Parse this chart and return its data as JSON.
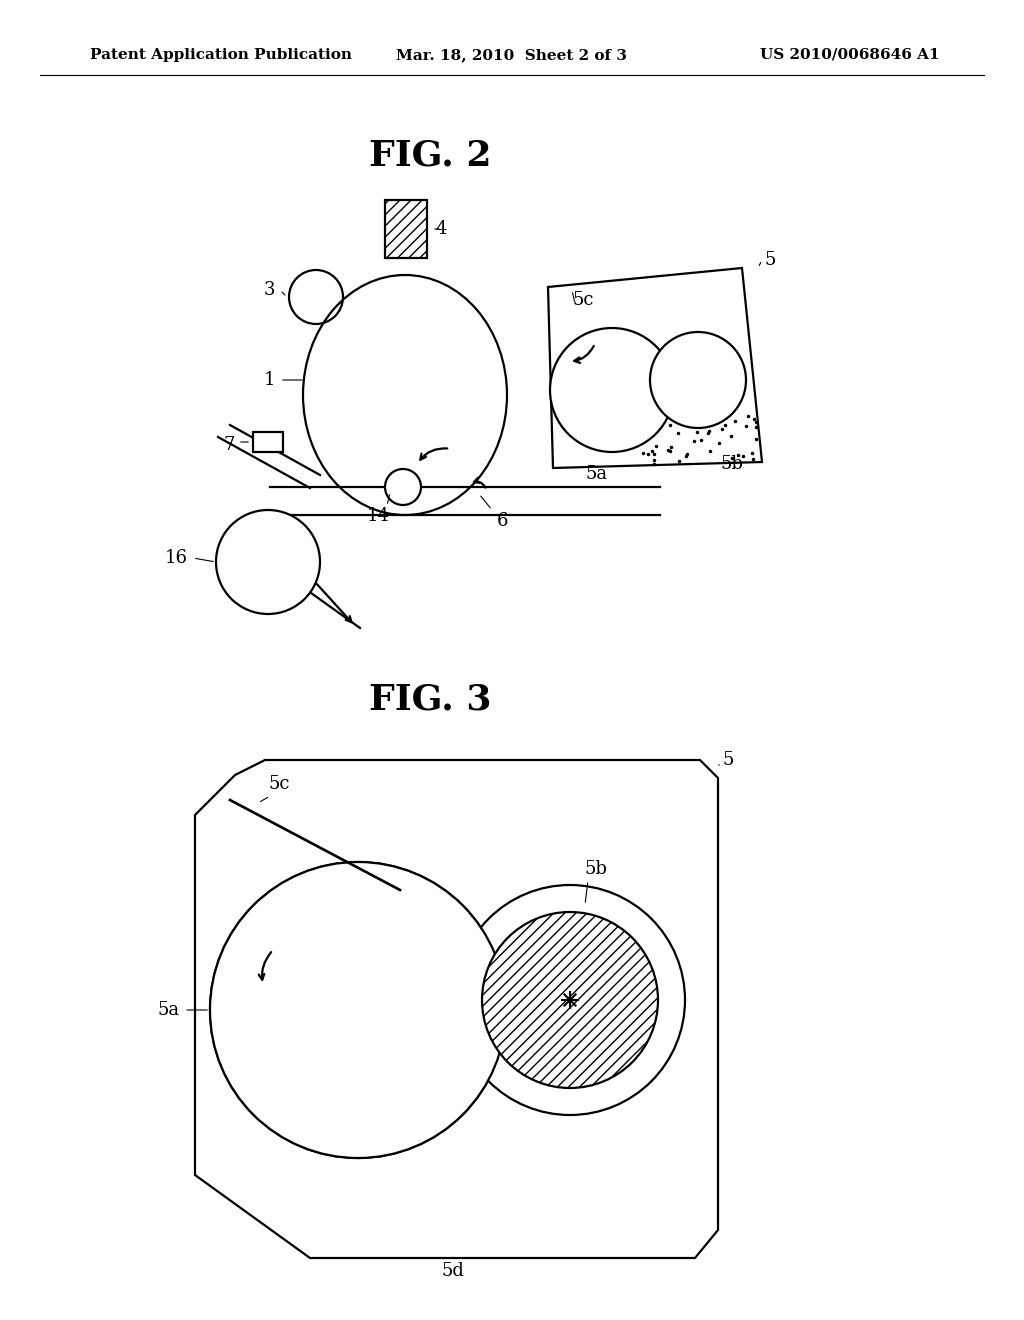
{
  "bg_color": "#ffffff",
  "header_left": "Patent Application Publication",
  "header_center": "Mar. 18, 2010  Sheet 2 of 3",
  "header_right": "US 2010/0068646 A1",
  "fig2_title": "FIG. 2",
  "fig3_title": "FIG. 3"
}
